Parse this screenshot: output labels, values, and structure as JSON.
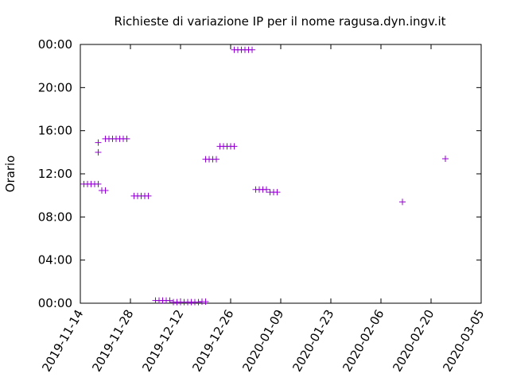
{
  "chart_data": {
    "type": "scatter",
    "title": "Richieste di variazione IP per il nome ragusa.dyn.ingv.it",
    "ylabel": "Orario",
    "color": "#9400d3",
    "x": [
      "2019-11-15",
      "2019-11-16",
      "2019-11-17",
      "2019-11-18",
      "2019-11-19",
      "2019-11-19",
      "2019-11-19",
      "2019-11-20",
      "2019-11-21",
      "2019-11-21",
      "2019-11-22",
      "2019-11-23",
      "2019-11-24",
      "2019-11-25",
      "2019-11-26",
      "2019-11-27",
      "2019-11-29",
      "2019-11-30",
      "2019-12-01",
      "2019-12-02",
      "2019-12-03",
      "2019-12-05",
      "2019-12-06",
      "2019-12-07",
      "2019-12-08",
      "2019-12-09",
      "2019-12-10",
      "2019-12-11",
      "2019-12-12",
      "2019-12-13",
      "2019-12-14",
      "2019-12-15",
      "2019-12-16",
      "2019-12-17",
      "2019-12-18",
      "2019-12-19",
      "2019-12-19",
      "2019-12-20",
      "2019-12-21",
      "2019-12-22",
      "2019-12-23",
      "2019-12-24",
      "2019-12-25",
      "2019-12-26",
      "2019-12-27",
      "2019-12-27",
      "2019-12-28",
      "2019-12-29",
      "2019-12-30",
      "2019-12-31",
      "2020-01-01",
      "2020-01-02",
      "2020-01-03",
      "2020-01-04",
      "2020-01-05",
      "2020-01-06",
      "2020-01-07",
      "2020-01-08",
      "2020-02-12",
      "2020-02-24"
    ],
    "values": [
      11.05,
      11.05,
      11.05,
      11.05,
      11.05,
      14.0,
      14.9,
      10.45,
      10.45,
      15.25,
      15.25,
      15.25,
      15.25,
      15.25,
      15.25,
      15.25,
      9.95,
      9.95,
      9.95,
      9.95,
      9.95,
      0.25,
      0.25,
      0.25,
      0.25,
      0.25,
      0.1,
      0.1,
      0.1,
      0.1,
      0.1,
      0.1,
      0.1,
      0.1,
      0.15,
      0.15,
      13.35,
      13.35,
      13.35,
      13.35,
      14.55,
      14.55,
      14.55,
      14.55,
      14.55,
      23.5,
      23.5,
      23.5,
      23.5,
      23.5,
      23.5,
      10.55,
      10.55,
      10.55,
      10.55,
      10.3,
      10.3,
      10.3,
      9.4,
      13.4
    ],
    "xlim": [
      "2019-11-14",
      "2020-03-05"
    ],
    "xticks": [
      "2019-11-14",
      "2019-11-28",
      "2019-12-12",
      "2019-12-26",
      "2020-01-09",
      "2020-01-23",
      "2020-02-06",
      "2020-02-20",
      "2020-03-05"
    ],
    "ylim": [
      0,
      24
    ],
    "yticks": [
      {
        "value": 0,
        "label": "00:00"
      },
      {
        "value": 4,
        "label": "04:00"
      },
      {
        "value": 8,
        "label": "08:00"
      },
      {
        "value": 12,
        "label": "12:00"
      },
      {
        "value": 16,
        "label": "16:00"
      },
      {
        "value": 20,
        "label": "20:00"
      },
      {
        "value": 24,
        "label": "00:00"
      }
    ]
  }
}
